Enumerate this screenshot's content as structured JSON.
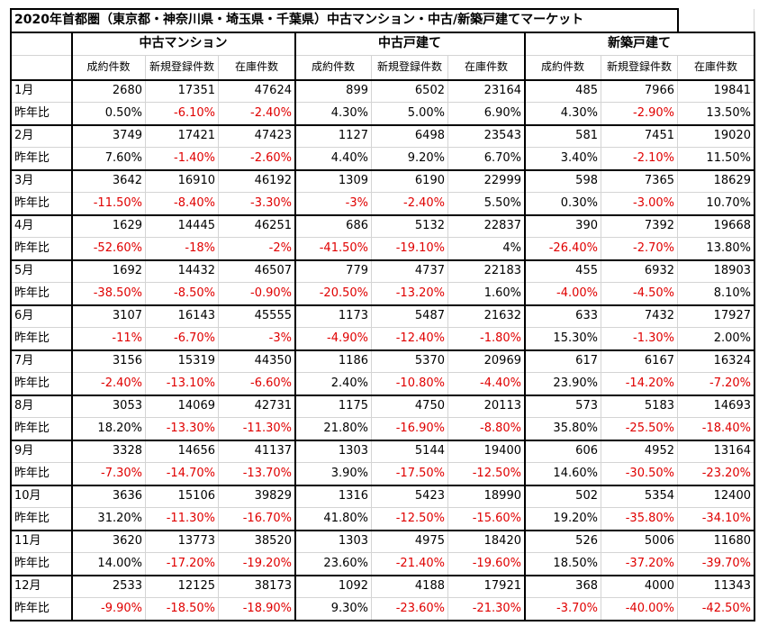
{
  "title": "2020年首都圏（東京都・神奈川県・埼玉県・千葉県）中古マンション・中古/新築戸建てマーケット",
  "groups": [
    "中古マンション",
    "中古戸建て",
    "新築戸建て"
  ],
  "columns": [
    "成約件数",
    "新規登録件数",
    "在庫件数"
  ],
  "yoy_label": "昨年比",
  "rows": [
    {
      "month": "1月",
      "counts": [
        "2680",
        "17351",
        "47624",
        "899",
        "6502",
        "23164",
        "485",
        "7966",
        "19841"
      ],
      "yoy": [
        "0.50%",
        "-6.10%",
        "-2.40%",
        "4.30%",
        "5.00%",
        "6.90%",
        "4.30%",
        "-2.90%",
        "13.50%"
      ]
    },
    {
      "month": "2月",
      "counts": [
        "3749",
        "17421",
        "47423",
        "1127",
        "6498",
        "23543",
        "581",
        "7451",
        "19020"
      ],
      "yoy": [
        "7.60%",
        "-1.40%",
        "-2.60%",
        "4.40%",
        "9.20%",
        "6.70%",
        "3.40%",
        "-2.10%",
        "11.50%"
      ]
    },
    {
      "month": "3月",
      "counts": [
        "3642",
        "16910",
        "46192",
        "1309",
        "6190",
        "22999",
        "598",
        "7365",
        "18629"
      ],
      "yoy": [
        "-11.50%",
        "-8.40%",
        "-3.30%",
        "-3%",
        "-2.40%",
        "5.50%",
        "0.30%",
        "-3.00%",
        "10.70%"
      ]
    },
    {
      "month": "4月",
      "counts": [
        "1629",
        "14445",
        "46251",
        "686",
        "5132",
        "22837",
        "390",
        "7392",
        "19668"
      ],
      "yoy": [
        "-52.60%",
        "-18%",
        "-2%",
        "-41.50%",
        "-19.10%",
        "4%",
        "-26.40%",
        "-2.70%",
        "13.80%"
      ]
    },
    {
      "month": "5月",
      "counts": [
        "1692",
        "14432",
        "46507",
        "779",
        "4737",
        "22183",
        "455",
        "6932",
        "18903"
      ],
      "yoy": [
        "-38.50%",
        "-8.50%",
        "-0.90%",
        "-20.50%",
        "-13.20%",
        "1.60%",
        "-4.00%",
        "-4.50%",
        "8.10%"
      ]
    },
    {
      "month": "6月",
      "counts": [
        "3107",
        "16143",
        "45555",
        "1173",
        "5487",
        "21632",
        "633",
        "7432",
        "17927"
      ],
      "yoy": [
        "-11%",
        "-6.70%",
        "-3%",
        "-4.90%",
        "-12.40%",
        "-1.80%",
        "15.30%",
        "-1.30%",
        "2.00%"
      ]
    },
    {
      "month": "7月",
      "counts": [
        "3156",
        "15319",
        "44350",
        "1186",
        "5370",
        "20969",
        "617",
        "6167",
        "16324"
      ],
      "yoy": [
        "-2.40%",
        "-13.10%",
        "-6.60%",
        "2.40%",
        "-10.80%",
        "-4.40%",
        "23.90%",
        "-14.20%",
        "-7.20%"
      ]
    },
    {
      "month": "8月",
      "counts": [
        "3053",
        "14069",
        "42731",
        "1175",
        "4750",
        "20113",
        "573",
        "5183",
        "14693"
      ],
      "yoy": [
        "18.20%",
        "-13.30%",
        "-11.30%",
        "21.80%",
        "-16.90%",
        "-8.80%",
        "35.80%",
        "-25.50%",
        "-18.40%"
      ]
    },
    {
      "month": "9月",
      "counts": [
        "3328",
        "14656",
        "41137",
        "1303",
        "5144",
        "19400",
        "606",
        "4952",
        "13164"
      ],
      "yoy": [
        "-7.30%",
        "-14.70%",
        "-13.70%",
        "3.90%",
        "-17.50%",
        "-12.50%",
        "14.60%",
        "-30.50%",
        "-23.20%"
      ]
    },
    {
      "month": "10月",
      "counts": [
        "3636",
        "15106",
        "39829",
        "1316",
        "5423",
        "18990",
        "502",
        "5354",
        "12400"
      ],
      "yoy": [
        "31.20%",
        "-11.30%",
        "-16.70%",
        "41.80%",
        "-12.50%",
        "-15.60%",
        "19.20%",
        "-35.80%",
        "-34.10%"
      ]
    },
    {
      "month": "11月",
      "counts": [
        "3620",
        "13773",
        "38520",
        "1303",
        "4975",
        "18420",
        "526",
        "5006",
        "11680"
      ],
      "yoy": [
        "14.00%",
        "-17.20%",
        "-19.20%",
        "23.60%",
        "-21.40%",
        "-19.60%",
        "18.50%",
        "-37.20%",
        "-39.70%"
      ]
    },
    {
      "month": "12月",
      "counts": [
        "2533",
        "12125",
        "38173",
        "1092",
        "4188",
        "17921",
        "368",
        "4000",
        "11343"
      ],
      "yoy": [
        "-9.90%",
        "-18.50%",
        "-18.90%",
        "9.30%",
        "-23.60%",
        "-21.30%",
        "-3.70%",
        "-40.00%",
        "-42.50%"
      ]
    }
  ]
}
